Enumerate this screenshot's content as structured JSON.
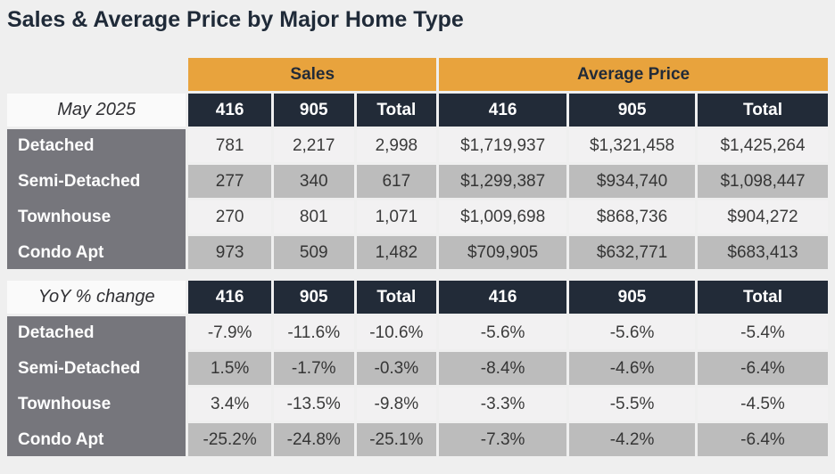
{
  "title": "Sales & Average Price by Major Home Type",
  "colors": {
    "page_background": "#EFEFEF",
    "accent_orange": "#E8A33D",
    "header_navy": "#222B38",
    "row_label_gray": "#76767C",
    "row_light": "#F2F1F2",
    "row_gray": "#BCBCBC",
    "period_cell_bg": "#FAFAFA",
    "title_text": "#1F2A38"
  },
  "chart_data": {
    "type": "table",
    "title": "Sales & Average Price by Major Home Type",
    "column_groups": {
      "sales": "Sales",
      "average_price": "Average Price"
    },
    "columns": [
      "416",
      "905",
      "Total",
      "416",
      "905",
      "Total"
    ],
    "sections": [
      {
        "name": "May 2025",
        "rows": [
          {
            "label": "Detached",
            "values": [
              "781",
              "2,217",
              "2,998",
              "$1,719,937",
              "$1,321,458",
              "$1,425,264"
            ]
          },
          {
            "label": "Semi-Detached",
            "values": [
              "277",
              "340",
              "617",
              "$1,299,387",
              "$934,740",
              "$1,098,447"
            ]
          },
          {
            "label": "Townhouse",
            "values": [
              "270",
              "801",
              "1,071",
              "$1,009,698",
              "$868,736",
              "$904,272"
            ]
          },
          {
            "label": "Condo Apt",
            "values": [
              "973",
              "509",
              "1,482",
              "$709,905",
              "$632,771",
              "$683,413"
            ]
          }
        ]
      },
      {
        "name": "YoY % change",
        "rows": [
          {
            "label": "Detached",
            "values": [
              "-7.9%",
              "-11.6%",
              "-10.6%",
              "-5.6%",
              "-5.6%",
              "-5.4%"
            ]
          },
          {
            "label": "Semi-Detached",
            "values": [
              "1.5%",
              "-1.7%",
              "-0.3%",
              "-8.4%",
              "-4.6%",
              "-6.4%"
            ]
          },
          {
            "label": "Townhouse",
            "values": [
              "3.4%",
              "-13.5%",
              "-9.8%",
              "-3.3%",
              "-5.5%",
              "-4.5%"
            ]
          },
          {
            "label": "Condo Apt",
            "values": [
              "-25.2%",
              "-24.8%",
              "-25.1%",
              "-7.3%",
              "-4.2%",
              "-6.4%"
            ]
          }
        ]
      }
    ]
  }
}
